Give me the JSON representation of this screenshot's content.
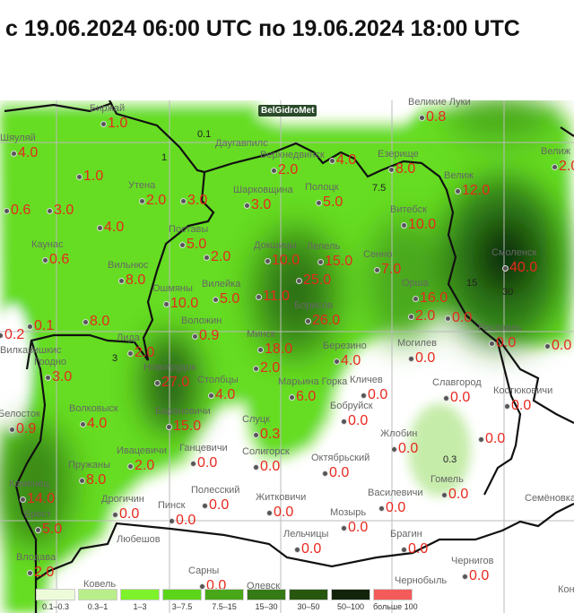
{
  "title": "с 19.06.2024 06:00 UTC по 19.06.2024 18:00 UTC",
  "map": {
    "watermark": "BelGidroMet",
    "stations": [
      {
        "name": "Биржай",
        "value": "1.0"
      },
      {
        "name": "Шяуляй",
        "value": "4.0"
      },
      {
        "name": "",
        "value": "1.0"
      },
      {
        "name": "Верхнедвинск",
        "value": "2.0"
      },
      {
        "name": "",
        "value": "4.0"
      },
      {
        "name": "Езерище",
        "value": "8.0"
      },
      {
        "name": "Великие Луки",
        "value": "0.8"
      },
      {
        "name": "",
        "value": "0.6"
      },
      {
        "name": "",
        "value": "3.0"
      },
      {
        "name": "",
        "value": "4.0"
      },
      {
        "name": "Утена",
        "value": "2.0"
      },
      {
        "name": "",
        "value": "3.0"
      },
      {
        "name": "Шарковщина",
        "value": "3.0"
      },
      {
        "name": "Полоцк",
        "value": "5.0"
      },
      {
        "name": "Витебск",
        "value": "10.0"
      },
      {
        "name": "Велиж",
        "value": "12.0"
      },
      {
        "name": "Велиж",
        "value": "2.0"
      },
      {
        "name": "Каунас",
        "value": "0.6"
      },
      {
        "name": "Поставы",
        "value": "5.0"
      },
      {
        "name": "",
        "value": "2.0"
      },
      {
        "name": "Докшицы",
        "value": "10.0"
      },
      {
        "name": "Лепель",
        "value": "15.0"
      },
      {
        "name": "",
        "value": "25.0"
      },
      {
        "name": "Сенно",
        "value": "7.0"
      },
      {
        "name": "Смоленск",
        "value": "40.0"
      },
      {
        "name": "Вильнюс",
        "value": "8.0"
      },
      {
        "name": "Ошмяны",
        "value": "10.0"
      },
      {
        "name": "Вилейка",
        "value": "5.0"
      },
      {
        "name": "",
        "value": "11.0"
      },
      {
        "name": "Орша",
        "value": "16.0"
      },
      {
        "name": "Борисов",
        "value": "26.0"
      },
      {
        "name": "",
        "value": "2.0"
      },
      {
        "name": "",
        "value": "0.0"
      },
      {
        "name": "",
        "value": "8.0"
      },
      {
        "name": "",
        "value": "0.1"
      },
      {
        "name": "Вилкавишкис",
        "value": "0.2"
      },
      {
        "name": "Воложин",
        "value": "0.9"
      },
      {
        "name": "Минск",
        "value": "18.0"
      },
      {
        "name": "Рославль",
        "value": "0.0"
      },
      {
        "name": "",
        "value": "0.0"
      },
      {
        "name": "Лида",
        "value": "2.0"
      },
      {
        "name": "Березино",
        "value": "4.0"
      },
      {
        "name": "Могилев",
        "value": "0.0"
      },
      {
        "name": "Гродно",
        "value": "3.0"
      },
      {
        "name": "Новогрудок",
        "value": "27.0"
      },
      {
        "name": "Столбцы",
        "value": "4.0"
      },
      {
        "name": "",
        "value": "2.0"
      },
      {
        "name": "Марьина Горка",
        "value": "6.0"
      },
      {
        "name": "Кличев",
        "value": "0.0"
      },
      {
        "name": "Славгород",
        "value": "0.0"
      },
      {
        "name": "Костюковичи",
        "value": "0.0"
      },
      {
        "name": "Белосток",
        "value": "0.9"
      },
      {
        "name": "Волковыск",
        "value": "4.0"
      },
      {
        "name": "Барановичи",
        "value": "15.0"
      },
      {
        "name": "Бобруйск",
        "value": "0.0"
      },
      {
        "name": "Слуцк",
        "value": "0.3"
      },
      {
        "name": "",
        "value": "0.0"
      },
      {
        "name": "Жлобин",
        "value": "0.0"
      },
      {
        "name": "Ивацевичи",
        "value": "2.0"
      },
      {
        "name": "Ганцевичи",
        "value": "0.0"
      },
      {
        "name": "Солигорск",
        "value": "0.0"
      },
      {
        "name": "Октябрьский",
        "value": "0.0"
      },
      {
        "name": "Пружаны",
        "value": "8.0"
      },
      {
        "name": "Гомель",
        "value": "0.0"
      },
      {
        "name": "Каменец",
        "value": "14.0"
      },
      {
        "name": "Брест",
        "value": "5.0"
      },
      {
        "name": "Дрогичин",
        "value": "0.0"
      },
      {
        "name": "Пинск",
        "value": "0.0"
      },
      {
        "name": "Полесский",
        "value": "0.0"
      },
      {
        "name": "Житковичи",
        "value": "0.0"
      },
      {
        "name": "Василевичи",
        "value": "0.0"
      },
      {
        "name": "Мозырь",
        "value": "0.0"
      },
      {
        "name": "Лельчицы",
        "value": "0.0"
      },
      {
        "name": "Брагин",
        "value": "0.0"
      },
      {
        "name": "Чернигов",
        "value": "0.0"
      },
      {
        "name": "Влодава",
        "value": "2.0"
      },
      {
        "name": "Сарны",
        "value": "0.0"
      }
    ],
    "places": [
      "Даугавпилс",
      "Любешов",
      "Ковель",
      "Олевск",
      "Чернобыль",
      "Семёновка",
      "Конотоп"
    ],
    "contour_labels": [
      "0.1",
      "0.3",
      "1",
      "3",
      "7.5",
      "15",
      "30"
    ]
  },
  "legend": [
    {
      "label": "0.1–0.3",
      "color": "#eefbd8"
    },
    {
      "label": "0.3–1",
      "color": "#b8ef8a"
    },
    {
      "label": "1–3",
      "color": "#7ef22a"
    },
    {
      "label": "3–7.5",
      "color": "#5bd41a"
    },
    {
      "label": "7.5–15",
      "color": "#48a818"
    },
    {
      "label": "15–30",
      "color": "#357a14"
    },
    {
      "label": "30–50",
      "color": "#27570f"
    },
    {
      "label": "50–100",
      "color": "#12240a"
    },
    {
      "label": "больше 100",
      "color": "#f55a5a"
    }
  ]
}
